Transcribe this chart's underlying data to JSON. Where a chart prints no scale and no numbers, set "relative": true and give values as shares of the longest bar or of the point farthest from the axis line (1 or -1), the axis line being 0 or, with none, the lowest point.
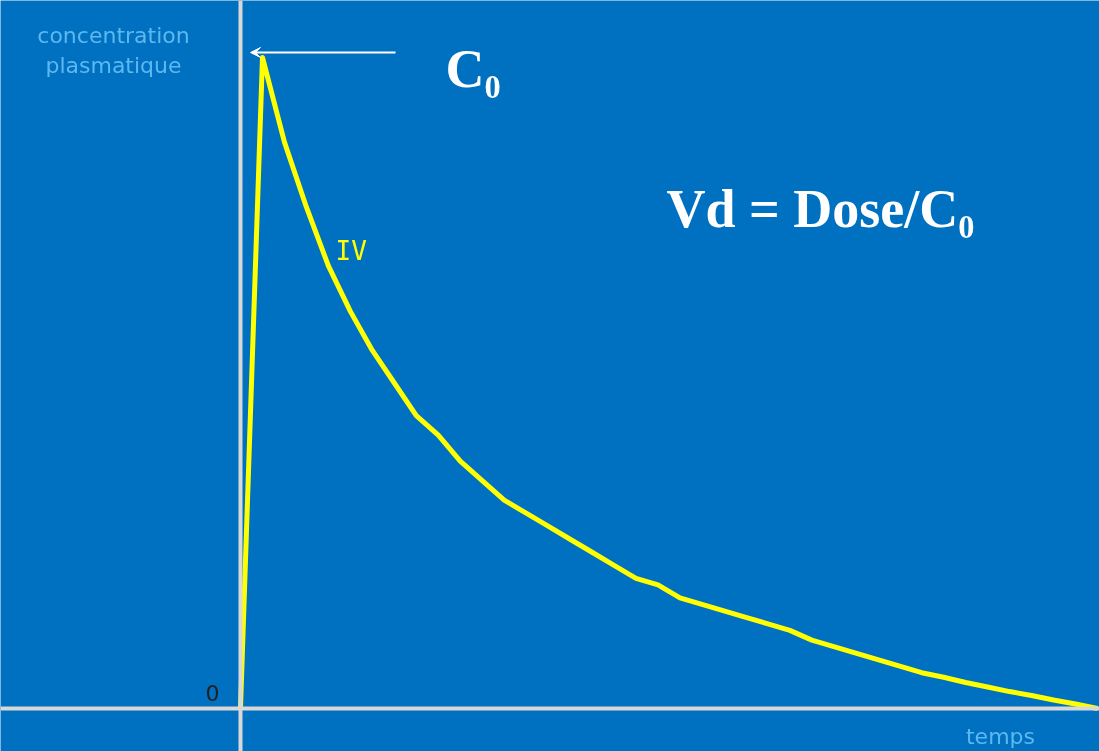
{
  "chart_data": {
    "type": "line",
    "relative": true,
    "xlabel": "temps",
    "ylabel": "concentration plasmatique",
    "categories": [
      null,
      null,
      null,
      null,
      null,
      null,
      null,
      null,
      null,
      null,
      null,
      null,
      null,
      null,
      null,
      null,
      null,
      null,
      null,
      null,
      null,
      null,
      null,
      null,
      null,
      null,
      null,
      null,
      null,
      null,
      null,
      null,
      null,
      null,
      null,
      null,
      null,
      null,
      null,
      null
    ],
    "series": [
      {
        "name": "IV",
        "color": "#ffff00",
        "values": [
          0,
          1,
          0.87,
          0.77,
          0.68,
          0.61,
          0.55,
          0.5,
          0.45,
          0.42,
          0.38,
          0.35,
          0.32,
          0.3,
          0.28,
          0.26,
          0.24,
          0.22,
          0.2,
          0.19,
          0.17,
          0.16,
          0.15,
          0.14,
          0.13,
          0.12,
          0.105,
          0.095,
          0.085,
          0.075,
          0.065,
          0.055,
          0.048,
          0.04,
          0.033,
          0.026,
          0.02,
          0.013,
          0.007,
          0
        ]
      }
    ],
    "annotations": [
      "C₀",
      "Vd = Dose/C₀",
      "0"
    ],
    "grid": false,
    "legend": false,
    "marker": "none",
    "line_style": "solid"
  }
}
